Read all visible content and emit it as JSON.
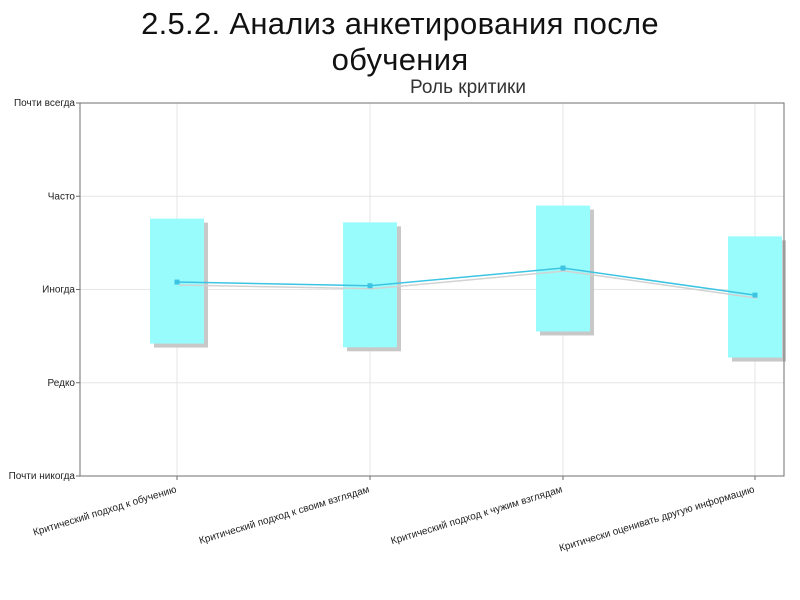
{
  "slide": {
    "title": "2.5.2. Анализ анкетирования после обучения"
  },
  "chart_data": {
    "type": "box",
    "title": "Роль критики",
    "y_scale": [
      "Почти никогда",
      "Редко",
      "Иногда",
      "Часто",
      "Почти всегда"
    ],
    "ylim": [
      0,
      4
    ],
    "grid": true,
    "categories": [
      "Критический подход к обучению",
      "Критический подход к своим взглядам",
      "Критический подход к чужим взглядам",
      "Критически оценивать другую информацию"
    ],
    "mean": [
      2.08,
      2.04,
      2.23,
      1.94
    ],
    "box_low": [
      1.42,
      1.38,
      1.55,
      1.27
    ],
    "box_high": [
      2.76,
      2.72,
      2.9,
      2.57
    ],
    "colors": {
      "box": "#99fcfc",
      "line": "#3cc4e2",
      "grid": "#e6e6e6",
      "shadow": "#c8c8c8"
    }
  }
}
